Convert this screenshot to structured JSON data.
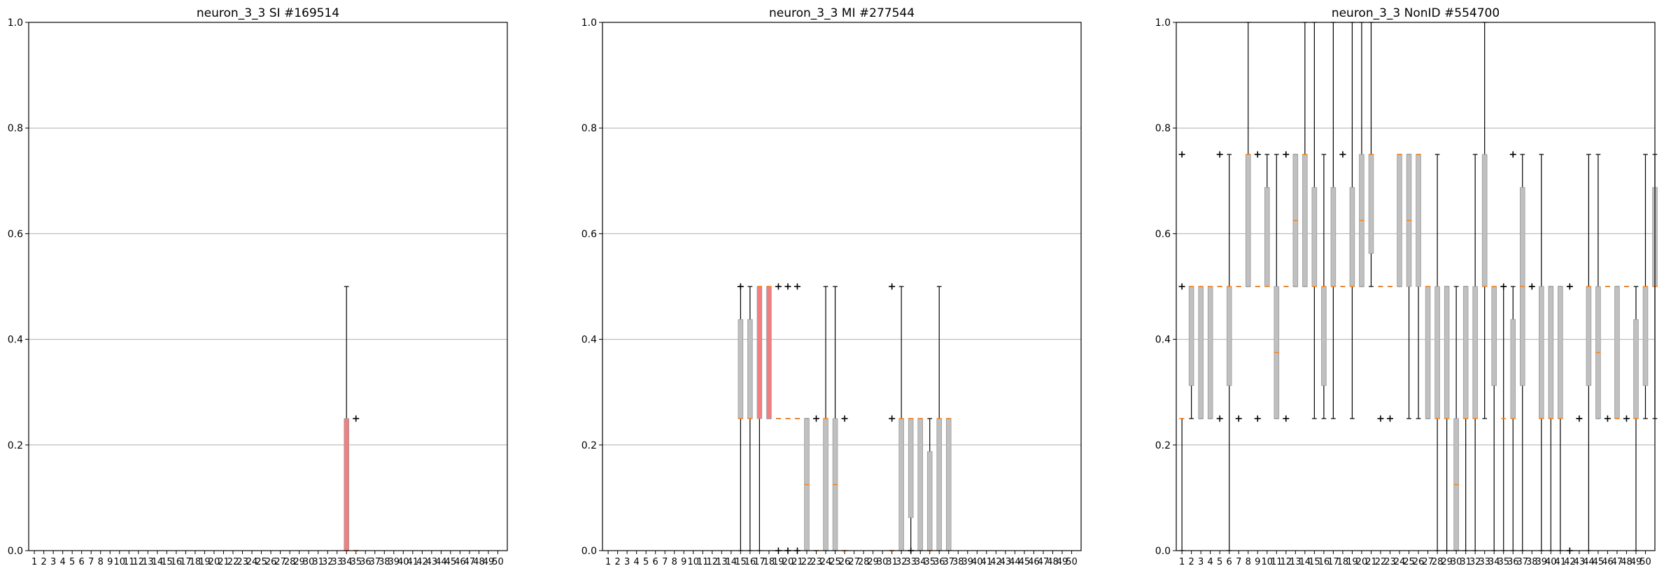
{
  "chart_data": [
    {
      "type": "boxplot",
      "title": "neuron_3_3 SI #169514",
      "categories": [
        "1",
        "2",
        "3",
        "4",
        "5",
        "6",
        "7",
        "8",
        "9",
        "10",
        "11",
        "12",
        "13",
        "14",
        "15",
        "16",
        "17",
        "18",
        "19",
        "20",
        "21",
        "22",
        "23",
        "24",
        "25",
        "26",
        "27",
        "28",
        "29",
        "30",
        "31",
        "32",
        "33",
        "34",
        "35",
        "36",
        "37",
        "38",
        "39",
        "40",
        "41",
        "42",
        "43",
        "44",
        "45",
        "46",
        "47",
        "48",
        "49",
        "50"
      ],
      "ylim": [
        0,
        1
      ],
      "yticks": [
        "0.0",
        "0.2",
        "0.4",
        "0.6",
        "0.8",
        "1.0"
      ],
      "grid": true,
      "boxes": [
        {
          "pos": 34,
          "q1": 0.0,
          "q3": 0.25,
          "median": 0.0,
          "wlo": 0.0,
          "whi": 0.5,
          "color": "#f08080",
          "fliers": []
        },
        {
          "pos": 35,
          "q1": 0.0,
          "q3": 0.0,
          "median": 0.0,
          "wlo": 0.0,
          "whi": 0.0,
          "color": "#c0c0c0",
          "fliers": [
            0.25
          ]
        }
      ]
    },
    {
      "type": "boxplot",
      "title": "neuron_3_3 MI #277544",
      "categories": [
        "1",
        "2",
        "3",
        "4",
        "5",
        "6",
        "7",
        "8",
        "9",
        "10",
        "11",
        "12",
        "13",
        "14",
        "15",
        "16",
        "17",
        "18",
        "19",
        "20",
        "21",
        "22",
        "23",
        "24",
        "25",
        "26",
        "27",
        "28",
        "29",
        "30",
        "31",
        "32",
        "33",
        "34",
        "35",
        "36",
        "37",
        "38",
        "39",
        "40",
        "41",
        "42",
        "43",
        "44",
        "45",
        "46",
        "47",
        "48",
        "49",
        "50"
      ],
      "ylim": [
        0,
        1
      ],
      "yticks": [
        "0.0",
        "0.2",
        "0.4",
        "0.6",
        "0.8",
        "1.0"
      ],
      "grid": true,
      "boxes": [
        {
          "pos": 15,
          "q1": 0.25,
          "q3": 0.4375,
          "median": 0.25,
          "wlo": 0.0,
          "whi": 0.5,
          "color": "#c0c0c0",
          "fliers": [
            0.5
          ]
        },
        {
          "pos": 16,
          "q1": 0.25,
          "q3": 0.4375,
          "median": 0.25,
          "wlo": 0.0,
          "whi": 0.5,
          "color": "#c0c0c0",
          "fliers": []
        },
        {
          "pos": 17,
          "q1": 0.25,
          "q3": 0.5,
          "median": 0.5,
          "wlo": 0.0,
          "whi": 0.5,
          "color": "#f08080",
          "fliers": []
        },
        {
          "pos": 18,
          "q1": 0.25,
          "q3": 0.5,
          "median": 0.5,
          "wlo": 0.25,
          "whi": 0.5,
          "color": "#f08080",
          "fliers": []
        },
        {
          "pos": 19,
          "q1": 0.25,
          "q3": 0.25,
          "median": 0.25,
          "wlo": 0.25,
          "whi": 0.25,
          "color": "#c0c0c0",
          "fliers": [
            0.5,
            0.0
          ]
        },
        {
          "pos": 20,
          "q1": 0.25,
          "q3": 0.25,
          "median": 0.25,
          "wlo": 0.25,
          "whi": 0.25,
          "color": "#c0c0c0",
          "fliers": [
            0.5,
            0.0
          ]
        },
        {
          "pos": 21,
          "q1": 0.25,
          "q3": 0.25,
          "median": 0.25,
          "wlo": 0.25,
          "whi": 0.25,
          "color": "#c0c0c0",
          "fliers": [
            0.5,
            0.0
          ]
        },
        {
          "pos": 22,
          "q1": 0.0,
          "q3": 0.25,
          "median": 0.125,
          "wlo": 0.0,
          "whi": 0.25,
          "color": "#c0c0c0",
          "fliers": []
        },
        {
          "pos": 23,
          "q1": 0.0,
          "q3": 0.0,
          "median": 0.0,
          "wlo": 0.0,
          "whi": 0.0,
          "color": "#c0c0c0",
          "fliers": [
            0.25
          ]
        },
        {
          "pos": 24,
          "q1": 0.0,
          "q3": 0.25,
          "median": 0.25,
          "wlo": 0.0,
          "whi": 0.5,
          "color": "#c0c0c0",
          "fliers": []
        },
        {
          "pos": 25,
          "q1": 0.0,
          "q3": 0.25,
          "median": 0.125,
          "wlo": 0.0,
          "whi": 0.5,
          "color": "#c0c0c0",
          "fliers": []
        },
        {
          "pos": 26,
          "q1": 0.0,
          "q3": 0.0,
          "median": 0.0,
          "wlo": 0.0,
          "whi": 0.0,
          "color": "#c0c0c0",
          "fliers": [
            0.25
          ]
        },
        {
          "pos": 31,
          "q1": 0.0,
          "q3": 0.0,
          "median": 0.0,
          "wlo": 0.0,
          "whi": 0.0,
          "color": "#c0c0c0",
          "fliers": [
            0.5,
            0.25
          ]
        },
        {
          "pos": 32,
          "q1": 0.0,
          "q3": 0.25,
          "median": 0.25,
          "wlo": 0.0,
          "whi": 0.5,
          "color": "#c0c0c0",
          "fliers": []
        },
        {
          "pos": 33,
          "q1": 0.0625,
          "q3": 0.25,
          "median": 0.25,
          "wlo": 0.0,
          "whi": 0.25,
          "color": "#c0c0c0",
          "fliers": [
            0.0
          ]
        },
        {
          "pos": 34,
          "q1": 0.0,
          "q3": 0.25,
          "median": 0.25,
          "wlo": 0.0,
          "whi": 0.25,
          "color": "#c0c0c0",
          "fliers": []
        },
        {
          "pos": 35,
          "q1": 0.0,
          "q3": 0.1875,
          "median": 0.0,
          "wlo": 0.0,
          "whi": 0.25,
          "color": "#c0c0c0",
          "fliers": []
        },
        {
          "pos": 36,
          "q1": 0.0,
          "q3": 0.25,
          "median": 0.25,
          "wlo": 0.0,
          "whi": 0.5,
          "color": "#c0c0c0",
          "fliers": []
        },
        {
          "pos": 37,
          "q1": 0.0,
          "q3": 0.25,
          "median": 0.25,
          "wlo": 0.0,
          "whi": 0.25,
          "color": "#c0c0c0",
          "fliers": []
        }
      ]
    },
    {
      "type": "boxplot",
      "title": "neuron_3_3 NonID #554700",
      "categories": [
        "1",
        "2",
        "3",
        "4",
        "5",
        "6",
        "7",
        "8",
        "9",
        "10",
        "11",
        "12",
        "13",
        "14",
        "15",
        "16",
        "17",
        "18",
        "19",
        "20",
        "21",
        "22",
        "23",
        "24",
        "25",
        "26",
        "27",
        "28",
        "29",
        "30",
        "31",
        "32",
        "33",
        "34",
        "35",
        "36",
        "37",
        "38",
        "39",
        "40",
        "41",
        "42",
        "43",
        "44",
        "45",
        "46",
        "47",
        "48",
        "49",
        "50"
      ],
      "ylim": [
        0,
        1
      ],
      "yticks": [
        "0.0",
        "0.2",
        "0.4",
        "0.6",
        "0.8",
        "1.0"
      ],
      "grid": true,
      "boxes": [
        {
          "pos": 1,
          "q1": 0.25,
          "q3": 0.25,
          "median": 0.25,
          "wlo": 0.0,
          "whi": 0.25,
          "color": "#c0c0c0",
          "fliers": [
            0.75,
            0.5
          ]
        },
        {
          "pos": 2,
          "q1": 0.3125,
          "q3": 0.5,
          "median": 0.5,
          "wlo": 0.25,
          "whi": 0.5,
          "color": "#c0c0c0",
          "fliers": []
        },
        {
          "pos": 3,
          "q1": 0.25,
          "q3": 0.5,
          "median": 0.5,
          "wlo": 0.25,
          "whi": 0.5,
          "color": "#c0c0c0",
          "fliers": []
        },
        {
          "pos": 4,
          "q1": 0.25,
          "q3": 0.5,
          "median": 0.5,
          "wlo": 0.25,
          "whi": 0.5,
          "color": "#c0c0c0",
          "fliers": []
        },
        {
          "pos": 5,
          "q1": 0.5,
          "q3": 0.5,
          "median": 0.5,
          "wlo": 0.5,
          "whi": 0.5,
          "color": "#c0c0c0",
          "fliers": [
            0.75,
            0.25
          ]
        },
        {
          "pos": 6,
          "q1": 0.3125,
          "q3": 0.5,
          "median": 0.5,
          "wlo": 0.0,
          "whi": 0.75,
          "color": "#c0c0c0",
          "fliers": []
        },
        {
          "pos": 7,
          "q1": 0.5,
          "q3": 0.5,
          "median": 0.5,
          "wlo": 0.5,
          "whi": 0.5,
          "color": "#c0c0c0",
          "fliers": [
            0.25
          ]
        },
        {
          "pos": 8,
          "q1": 0.5,
          "q3": 0.75,
          "median": 0.75,
          "wlo": 0.5,
          "whi": 1.0,
          "color": "#c0c0c0",
          "fliers": []
        },
        {
          "pos": 9,
          "q1": 0.5,
          "q3": 0.5,
          "median": 0.5,
          "wlo": 0.5,
          "whi": 0.5,
          "color": "#c0c0c0",
          "fliers": [
            0.75,
            0.25
          ]
        },
        {
          "pos": 10,
          "q1": 0.5,
          "q3": 0.6875,
          "median": 0.5,
          "wlo": 0.5,
          "whi": 0.75,
          "color": "#c0c0c0",
          "fliers": []
        },
        {
          "pos": 11,
          "q1": 0.25,
          "q3": 0.5,
          "median": 0.375,
          "wlo": 0.25,
          "whi": 0.75,
          "color": "#c0c0c0",
          "fliers": []
        },
        {
          "pos": 12,
          "q1": 0.5,
          "q3": 0.5,
          "median": 0.5,
          "wlo": 0.5,
          "whi": 0.5,
          "color": "#c0c0c0",
          "fliers": [
            0.75,
            0.25
          ]
        },
        {
          "pos": 13,
          "q1": 0.5,
          "q3": 0.75,
          "median": 0.625,
          "wlo": 0.5,
          "whi": 0.75,
          "color": "#c0c0c0",
          "fliers": []
        },
        {
          "pos": 14,
          "q1": 0.5,
          "q3": 0.75,
          "median": 0.75,
          "wlo": 0.5,
          "whi": 1.0,
          "color": "#c0c0c0",
          "fliers": []
        },
        {
          "pos": 15,
          "q1": 0.5,
          "q3": 0.6875,
          "median": 0.5,
          "wlo": 0.25,
          "whi": 1.0,
          "color": "#c0c0c0",
          "fliers": []
        },
        {
          "pos": 16,
          "q1": 0.3125,
          "q3": 0.5,
          "median": 0.5,
          "wlo": 0.25,
          "whi": 0.75,
          "color": "#c0c0c0",
          "fliers": []
        },
        {
          "pos": 17,
          "q1": 0.5,
          "q3": 0.6875,
          "median": 0.5,
          "wlo": 0.25,
          "whi": 1.0,
          "color": "#c0c0c0",
          "fliers": []
        },
        {
          "pos": 18,
          "q1": 0.5,
          "q3": 0.5,
          "median": 0.5,
          "wlo": 0.5,
          "whi": 0.5,
          "color": "#c0c0c0",
          "fliers": [
            0.75
          ]
        },
        {
          "pos": 19,
          "q1": 0.5,
          "q3": 0.6875,
          "median": 0.5,
          "wlo": 0.25,
          "whi": 1.0,
          "color": "#c0c0c0",
          "fliers": []
        },
        {
          "pos": 20,
          "q1": 0.5,
          "q3": 0.75,
          "median": 0.625,
          "wlo": 0.5,
          "whi": 1.0,
          "color": "#c0c0c0",
          "fliers": []
        },
        {
          "pos": 21,
          "q1": 0.5625,
          "q3": 0.75,
          "median": 0.75,
          "wlo": 0.5,
          "whi": 1.0,
          "color": "#c0c0c0",
          "fliers": []
        },
        {
          "pos": 22,
          "q1": 0.5,
          "q3": 0.5,
          "median": 0.5,
          "wlo": 0.5,
          "whi": 0.5,
          "color": "#c0c0c0",
          "fliers": [
            0.25
          ]
        },
        {
          "pos": 23,
          "q1": 0.5,
          "q3": 0.5,
          "median": 0.5,
          "wlo": 0.5,
          "whi": 0.5,
          "color": "#c0c0c0",
          "fliers": [
            0.25
          ]
        },
        {
          "pos": 24,
          "q1": 0.5,
          "q3": 0.75,
          "median": 0.75,
          "wlo": 0.5,
          "whi": 0.75,
          "color": "#c0c0c0",
          "fliers": []
        },
        {
          "pos": 25,
          "q1": 0.5,
          "q3": 0.75,
          "median": 0.625,
          "wlo": 0.25,
          "whi": 0.75,
          "color": "#c0c0c0",
          "fliers": []
        },
        {
          "pos": 26,
          "q1": 0.5,
          "q3": 0.75,
          "median": 0.75,
          "wlo": 0.25,
          "whi": 0.75,
          "color": "#c0c0c0",
          "fliers": []
        },
        {
          "pos": 27,
          "q1": 0.25,
          "q3": 0.5,
          "median": 0.5,
          "wlo": 0.25,
          "whi": 0.5,
          "color": "#c0c0c0",
          "fliers": []
        },
        {
          "pos": 28,
          "q1": 0.25,
          "q3": 0.5,
          "median": 0.25,
          "wlo": 0.0,
          "whi": 0.75,
          "color": "#c0c0c0",
          "fliers": []
        },
        {
          "pos": 29,
          "q1": 0.25,
          "q3": 0.5,
          "median": 0.25,
          "wlo": 0.0,
          "whi": 0.5,
          "color": "#c0c0c0",
          "fliers": []
        },
        {
          "pos": 30,
          "q1": 0.0,
          "q3": 0.25,
          "median": 0.125,
          "wlo": 0.0,
          "whi": 0.5,
          "color": "#c0c0c0",
          "fliers": []
        },
        {
          "pos": 31,
          "q1": 0.25,
          "q3": 0.5,
          "median": 0.25,
          "wlo": 0.0,
          "whi": 0.5,
          "color": "#c0c0c0",
          "fliers": []
        },
        {
          "pos": 32,
          "q1": 0.25,
          "q3": 0.5,
          "median": 0.25,
          "wlo": 0.0,
          "whi": 0.75,
          "color": "#c0c0c0",
          "fliers": []
        },
        {
          "pos": 33,
          "q1": 0.5,
          "q3": 0.75,
          "median": 0.5,
          "wlo": 0.25,
          "whi": 1.0,
          "color": "#c0c0c0",
          "fliers": []
        },
        {
          "pos": 34,
          "q1": 0.3125,
          "q3": 0.5,
          "median": 0.5,
          "wlo": 0.0,
          "whi": 0.5,
          "color": "#c0c0c0",
          "fliers": []
        },
        {
          "pos": 35,
          "q1": 0.25,
          "q3": 0.25,
          "median": 0.25,
          "wlo": 0.0,
          "whi": 0.5,
          "color": "#c0c0c0",
          "fliers": [
            0.5
          ]
        },
        {
          "pos": 36,
          "q1": 0.25,
          "q3": 0.4375,
          "median": 0.25,
          "wlo": 0.0,
          "whi": 0.5,
          "color": "#c0c0c0",
          "fliers": [
            0.75
          ]
        },
        {
          "pos": 37,
          "q1": 0.3125,
          "q3": 0.6875,
          "median": 0.5,
          "wlo": 0.0,
          "whi": 0.75,
          "color": "#c0c0c0",
          "fliers": []
        },
        {
          "pos": 38,
          "q1": 0.5,
          "q3": 0.5,
          "median": 0.5,
          "wlo": 0.5,
          "whi": 0.5,
          "color": "#c0c0c0",
          "fliers": [
            0.5
          ]
        },
        {
          "pos": 39,
          "q1": 0.25,
          "q3": 0.5,
          "median": 0.25,
          "wlo": 0.0,
          "whi": 0.75,
          "color": "#c0c0c0",
          "fliers": []
        },
        {
          "pos": 40,
          "q1": 0.25,
          "q3": 0.5,
          "median": 0.25,
          "wlo": 0.0,
          "whi": 0.5,
          "color": "#c0c0c0",
          "fliers": []
        },
        {
          "pos": 41,
          "q1": 0.25,
          "q3": 0.5,
          "median": 0.25,
          "wlo": 0.0,
          "whi": 0.5,
          "color": "#c0c0c0",
          "fliers": []
        },
        {
          "pos": 42,
          "q1": 0.5,
          "q3": 0.5,
          "median": 0.5,
          "wlo": 0.5,
          "whi": 0.5,
          "color": "#c0c0c0",
          "fliers": [
            0.5,
            0.0
          ]
        },
        {
          "pos": 43,
          "q1": 0.25,
          "q3": 0.25,
          "median": 0.25,
          "wlo": 0.25,
          "whi": 0.25,
          "color": "#c0c0c0",
          "fliers": [
            0.25
          ]
        },
        {
          "pos": 44,
          "q1": 0.3125,
          "q3": 0.5,
          "median": 0.5,
          "wlo": 0.0,
          "whi": 0.75,
          "color": "#c0c0c0",
          "fliers": []
        },
        {
          "pos": 45,
          "q1": 0.25,
          "q3": 0.5,
          "median": 0.375,
          "wlo": 0.25,
          "whi": 0.75,
          "color": "#c0c0c0",
          "fliers": []
        },
        {
          "pos": 46,
          "q1": 0.5,
          "q3": 0.5,
          "median": 0.5,
          "wlo": 0.5,
          "whi": 0.5,
          "color": "#c0c0c0",
          "fliers": [
            0.25
          ]
        },
        {
          "pos": 47,
          "q1": 0.25,
          "q3": 0.5,
          "median": 0.25,
          "wlo": 0.25,
          "whi": 0.5,
          "color": "#c0c0c0",
          "fliers": []
        },
        {
          "pos": 48,
          "q1": 0.5,
          "q3": 0.5,
          "median": 0.5,
          "wlo": 0.5,
          "whi": 0.5,
          "color": "#c0c0c0",
          "fliers": [
            0.25
          ]
        },
        {
          "pos": 49,
          "q1": 0.25,
          "q3": 0.4375,
          "median": 0.25,
          "wlo": 0.0,
          "whi": 0.5,
          "color": "#c0c0c0",
          "fliers": []
        },
        {
          "pos": 50,
          "q1": 0.3125,
          "q3": 0.5,
          "median": 0.5,
          "wlo": 0.25,
          "whi": 0.75,
          "color": "#c0c0c0",
          "fliers": []
        },
        {
          "pos": 51,
          "q1": 0.5,
          "q3": 0.6875,
          "median": 0.5,
          "wlo": 0.25,
          "whi": 0.75,
          "color": "#c0c0c0",
          "fliers": []
        }
      ]
    }
  ]
}
